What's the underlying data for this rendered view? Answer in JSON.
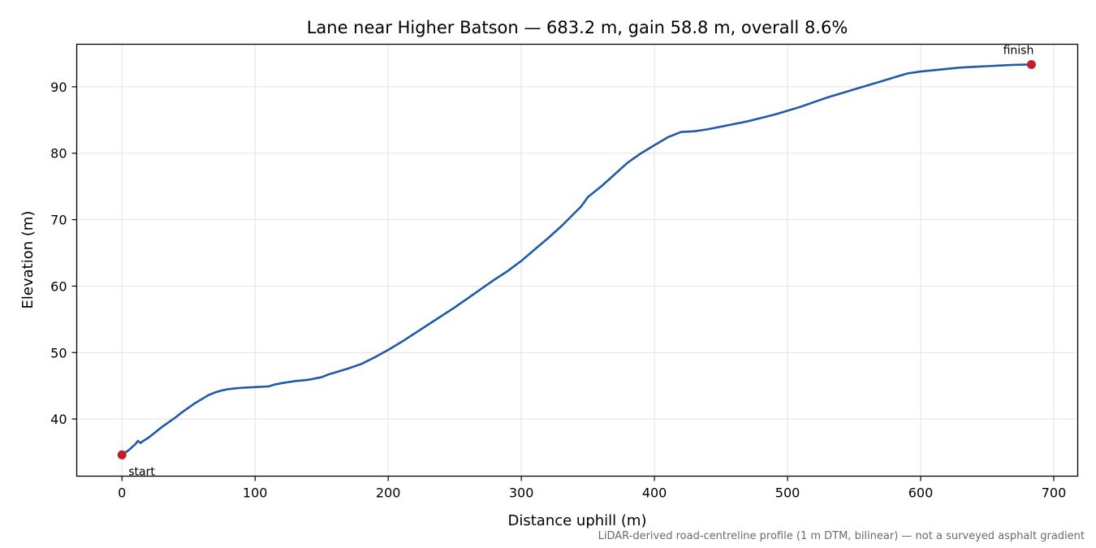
{
  "chart_data": {
    "type": "line",
    "title": "Lane near Higher Batson — 683.2 m, gain 58.8 m, overall 8.6%",
    "xlabel": "Distance uphill (m)",
    "ylabel": "Elevation (m)",
    "xlim": [
      -34,
      718
    ],
    "ylim": [
      31.4,
      96.4
    ],
    "xticks": [
      0,
      100,
      200,
      300,
      400,
      500,
      600,
      700
    ],
    "yticks": [
      40,
      50,
      60,
      70,
      80,
      90
    ],
    "grid": true,
    "line_color": "#1f5aa6",
    "marker_color": "#c0202a",
    "series": [
      {
        "x": [
          0,
          5,
          10,
          12,
          14,
          16,
          20,
          25,
          30,
          35,
          40,
          45,
          50,
          55,
          60,
          65,
          70,
          75,
          80,
          90,
          100,
          110,
          115,
          120,
          130,
          140,
          150,
          155,
          160,
          170,
          180,
          190,
          200,
          210,
          220,
          230,
          240,
          250,
          260,
          270,
          280,
          290,
          300,
          310,
          320,
          330,
          340,
          345,
          350,
          360,
          370,
          380,
          390,
          400,
          410,
          420,
          430,
          440,
          450,
          460,
          470,
          480,
          490,
          500,
          510,
          520,
          530,
          540,
          550,
          560,
          570,
          580,
          590,
          600,
          610,
          620,
          630,
          640,
          650,
          660,
          670,
          683.2
        ],
        "y": [
          34.6,
          35.3,
          36.2,
          36.7,
          36.4,
          36.7,
          37.2,
          38.0,
          38.8,
          39.5,
          40.2,
          41.0,
          41.7,
          42.4,
          43.0,
          43.6,
          44.0,
          44.3,
          44.5,
          44.7,
          44.8,
          44.9,
          45.2,
          45.4,
          45.7,
          45.9,
          46.3,
          46.7,
          47.0,
          47.6,
          48.3,
          49.3,
          50.4,
          51.6,
          52.9,
          54.2,
          55.5,
          56.8,
          58.2,
          59.6,
          61.0,
          62.3,
          63.8,
          65.5,
          67.2,
          69.0,
          71.0,
          72.0,
          73.4,
          75.0,
          76.8,
          78.6,
          80.0,
          81.2,
          82.4,
          83.2,
          83.3,
          83.6,
          84.0,
          84.4,
          84.8,
          85.3,
          85.8,
          86.4,
          87.0,
          87.7,
          88.4,
          89.0,
          89.6,
          90.2,
          90.8,
          91.4,
          92.0,
          92.3,
          92.5,
          92.7,
          92.9,
          93.0,
          93.1,
          93.2,
          93.3,
          93.35
        ]
      }
    ],
    "annotations": [
      {
        "label": "start",
        "x": 0,
        "y": 34.6
      },
      {
        "label": "finish",
        "x": 683.2,
        "y": 93.35
      }
    ],
    "footnote": "LiDAR-derived road-centreline profile (1 m DTM, bilinear) — not a surveyed asphalt gradient"
  }
}
